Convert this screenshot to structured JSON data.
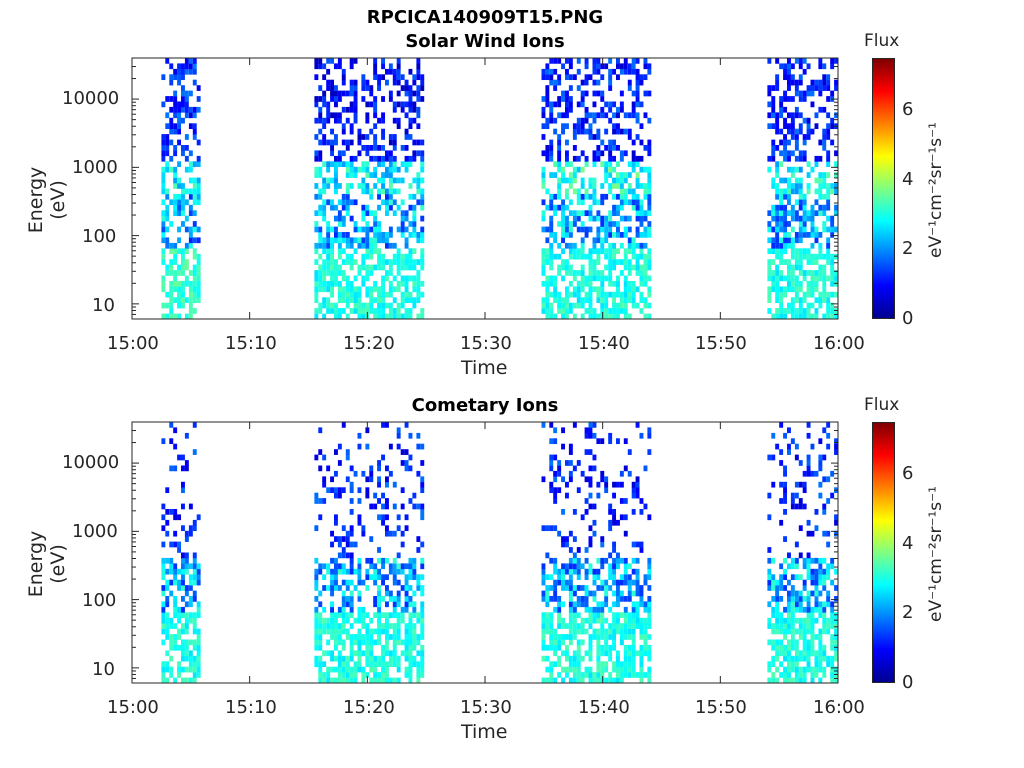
{
  "figure_title": "RPCICA140909T15.PNG",
  "panels": [
    {
      "title": "Solar Wind Ions",
      "ylabel": "Energy (eV)",
      "xlabel": "Time",
      "colorbar_title": "Flux",
      "colorbar_unit": "eV⁻¹cm⁻²sr⁻¹s⁻¹"
    },
    {
      "title": "Cometary Ions",
      "ylabel": "Energy (eV)",
      "xlabel": "Time",
      "colorbar_title": "Flux",
      "colorbar_unit": "eV⁻¹cm⁻²sr⁻¹s⁻¹"
    }
  ],
  "chart_data": [
    {
      "type": "heatmap",
      "title": "Solar Wind Ions",
      "xlabel": "Time",
      "ylabel": "Energy (eV)",
      "x_range": [
        "15:00",
        "16:00"
      ],
      "x_ticks": [
        "15:00",
        "15:10",
        "15:20",
        "15:30",
        "15:40",
        "15:50",
        "16:00"
      ],
      "y_scale": "log",
      "y_range": [
        6,
        40000
      ],
      "y_ticks": [
        "10",
        "100",
        "1000",
        "10000"
      ],
      "colorbar": {
        "label": "Flux",
        "unit": "eV⁻¹cm⁻²sr⁻¹s⁻¹",
        "range": [
          0,
          7.5
        ],
        "ticks": [
          "0",
          "2",
          "4",
          "6"
        ],
        "colormap": "jet"
      },
      "active_intervals": [
        {
          "start": "15:02.5",
          "end": "15:05.5",
          "low_energy_flux": 3.2,
          "peak_energy_eV": 700,
          "peak_flux": 3.6,
          "high_energy_flux": 1.3
        },
        {
          "start": "15:15.5",
          "end": "15:24.8",
          "low_energy_flux": 3.0,
          "peak_energy_eV": 700,
          "peak_flux": 3.5,
          "high_energy_flux": 1.0
        },
        {
          "start": "15:34.8",
          "end": "15:44",
          "low_energy_flux": 3.0,
          "peak_energy_eV": 700,
          "peak_flux": 3.8,
          "high_energy_flux": 1.2
        },
        {
          "start": "15:54",
          "end": "16:00",
          "low_energy_flux": 3.0,
          "peak_energy_eV": 700,
          "peak_flux": 3.5,
          "high_energy_flux": 1.2
        }
      ]
    },
    {
      "type": "heatmap",
      "title": "Cometary Ions",
      "xlabel": "Time",
      "ylabel": "Energy (eV)",
      "x_range": [
        "15:00",
        "16:00"
      ],
      "x_ticks": [
        "15:00",
        "15:10",
        "15:20",
        "15:30",
        "15:40",
        "15:50",
        "16:00"
      ],
      "y_scale": "log",
      "y_range": [
        6,
        40000
      ],
      "y_ticks": [
        "10",
        "100",
        "1000",
        "10000"
      ],
      "colorbar": {
        "label": "Flux",
        "unit": "eV⁻¹cm⁻²sr⁻¹s⁻¹",
        "range": [
          0,
          7.5
        ],
        "ticks": [
          "0",
          "2",
          "4",
          "6"
        ],
        "colormap": "jet"
      },
      "active_intervals": [
        {
          "start": "15:02.5",
          "end": "15:05.5",
          "low_energy_flux": 3.0,
          "high_energy_flux": 1.2
        },
        {
          "start": "15:15.5",
          "end": "15:24.8",
          "low_energy_flux": 3.0,
          "high_energy_flux": 1.2
        },
        {
          "start": "15:34.8",
          "end": "15:44",
          "low_energy_flux": 3.0,
          "high_energy_flux": 1.2
        },
        {
          "start": "15:54",
          "end": "16:00",
          "low_energy_flux": 3.0,
          "high_energy_flux": 1.2
        }
      ]
    }
  ]
}
